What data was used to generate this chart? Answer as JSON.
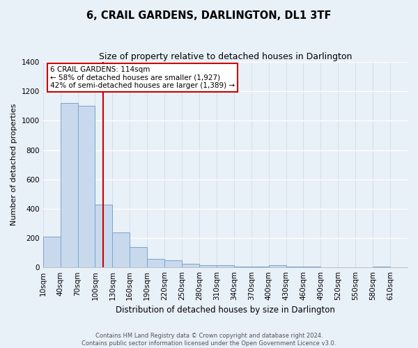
{
  "title": "6, CRAIL GARDENS, DARLINGTON, DL1 3TF",
  "subtitle": "Size of property relative to detached houses in Darlington",
  "xlabel": "Distribution of detached houses by size in Darlington",
  "ylabel": "Number of detached properties",
  "footer_lines": [
    "Contains HM Land Registry data © Crown copyright and database right 2024.",
    "Contains public sector information licensed under the Open Government Licence v3.0."
  ],
  "bin_labels": [
    "10sqm",
    "40sqm",
    "70sqm",
    "100sqm",
    "130sqm",
    "160sqm",
    "190sqm",
    "220sqm",
    "250sqm",
    "280sqm",
    "310sqm",
    "340sqm",
    "370sqm",
    "400sqm",
    "430sqm",
    "460sqm",
    "490sqm",
    "520sqm",
    "550sqm",
    "580sqm",
    "610sqm"
  ],
  "bar_values": [
    210,
    1120,
    1100,
    430,
    240,
    140,
    60,
    50,
    25,
    18,
    15,
    5,
    5,
    15,
    5,
    5,
    0,
    0,
    0,
    5,
    0
  ],
  "bar_color": "#c9d9ed",
  "bar_edge_color": "#7aa4c8",
  "background_color": "#e8f0f8",
  "grid_color": "#d0dcea",
  "ylim": [
    0,
    1400
  ],
  "yticks": [
    0,
    200,
    400,
    600,
    800,
    1000,
    1200,
    1400
  ],
  "vline_x": 3.47,
  "vline_color": "#cc0000",
  "annotation_text": "6 CRAIL GARDENS: 114sqm\n← 58% of detached houses are smaller (1,927)\n42% of semi-detached houses are larger (1,389) →",
  "annotation_box_edge": "#cc0000",
  "annotation_box_face": "#ffffff",
  "title_fontsize": 10.5,
  "subtitle_fontsize": 9,
  "xlabel_fontsize": 8.5,
  "ylabel_fontsize": 8,
  "tick_fontsize": 7.5,
  "annotation_fontsize": 7.5,
  "footer_fontsize": 6.0
}
